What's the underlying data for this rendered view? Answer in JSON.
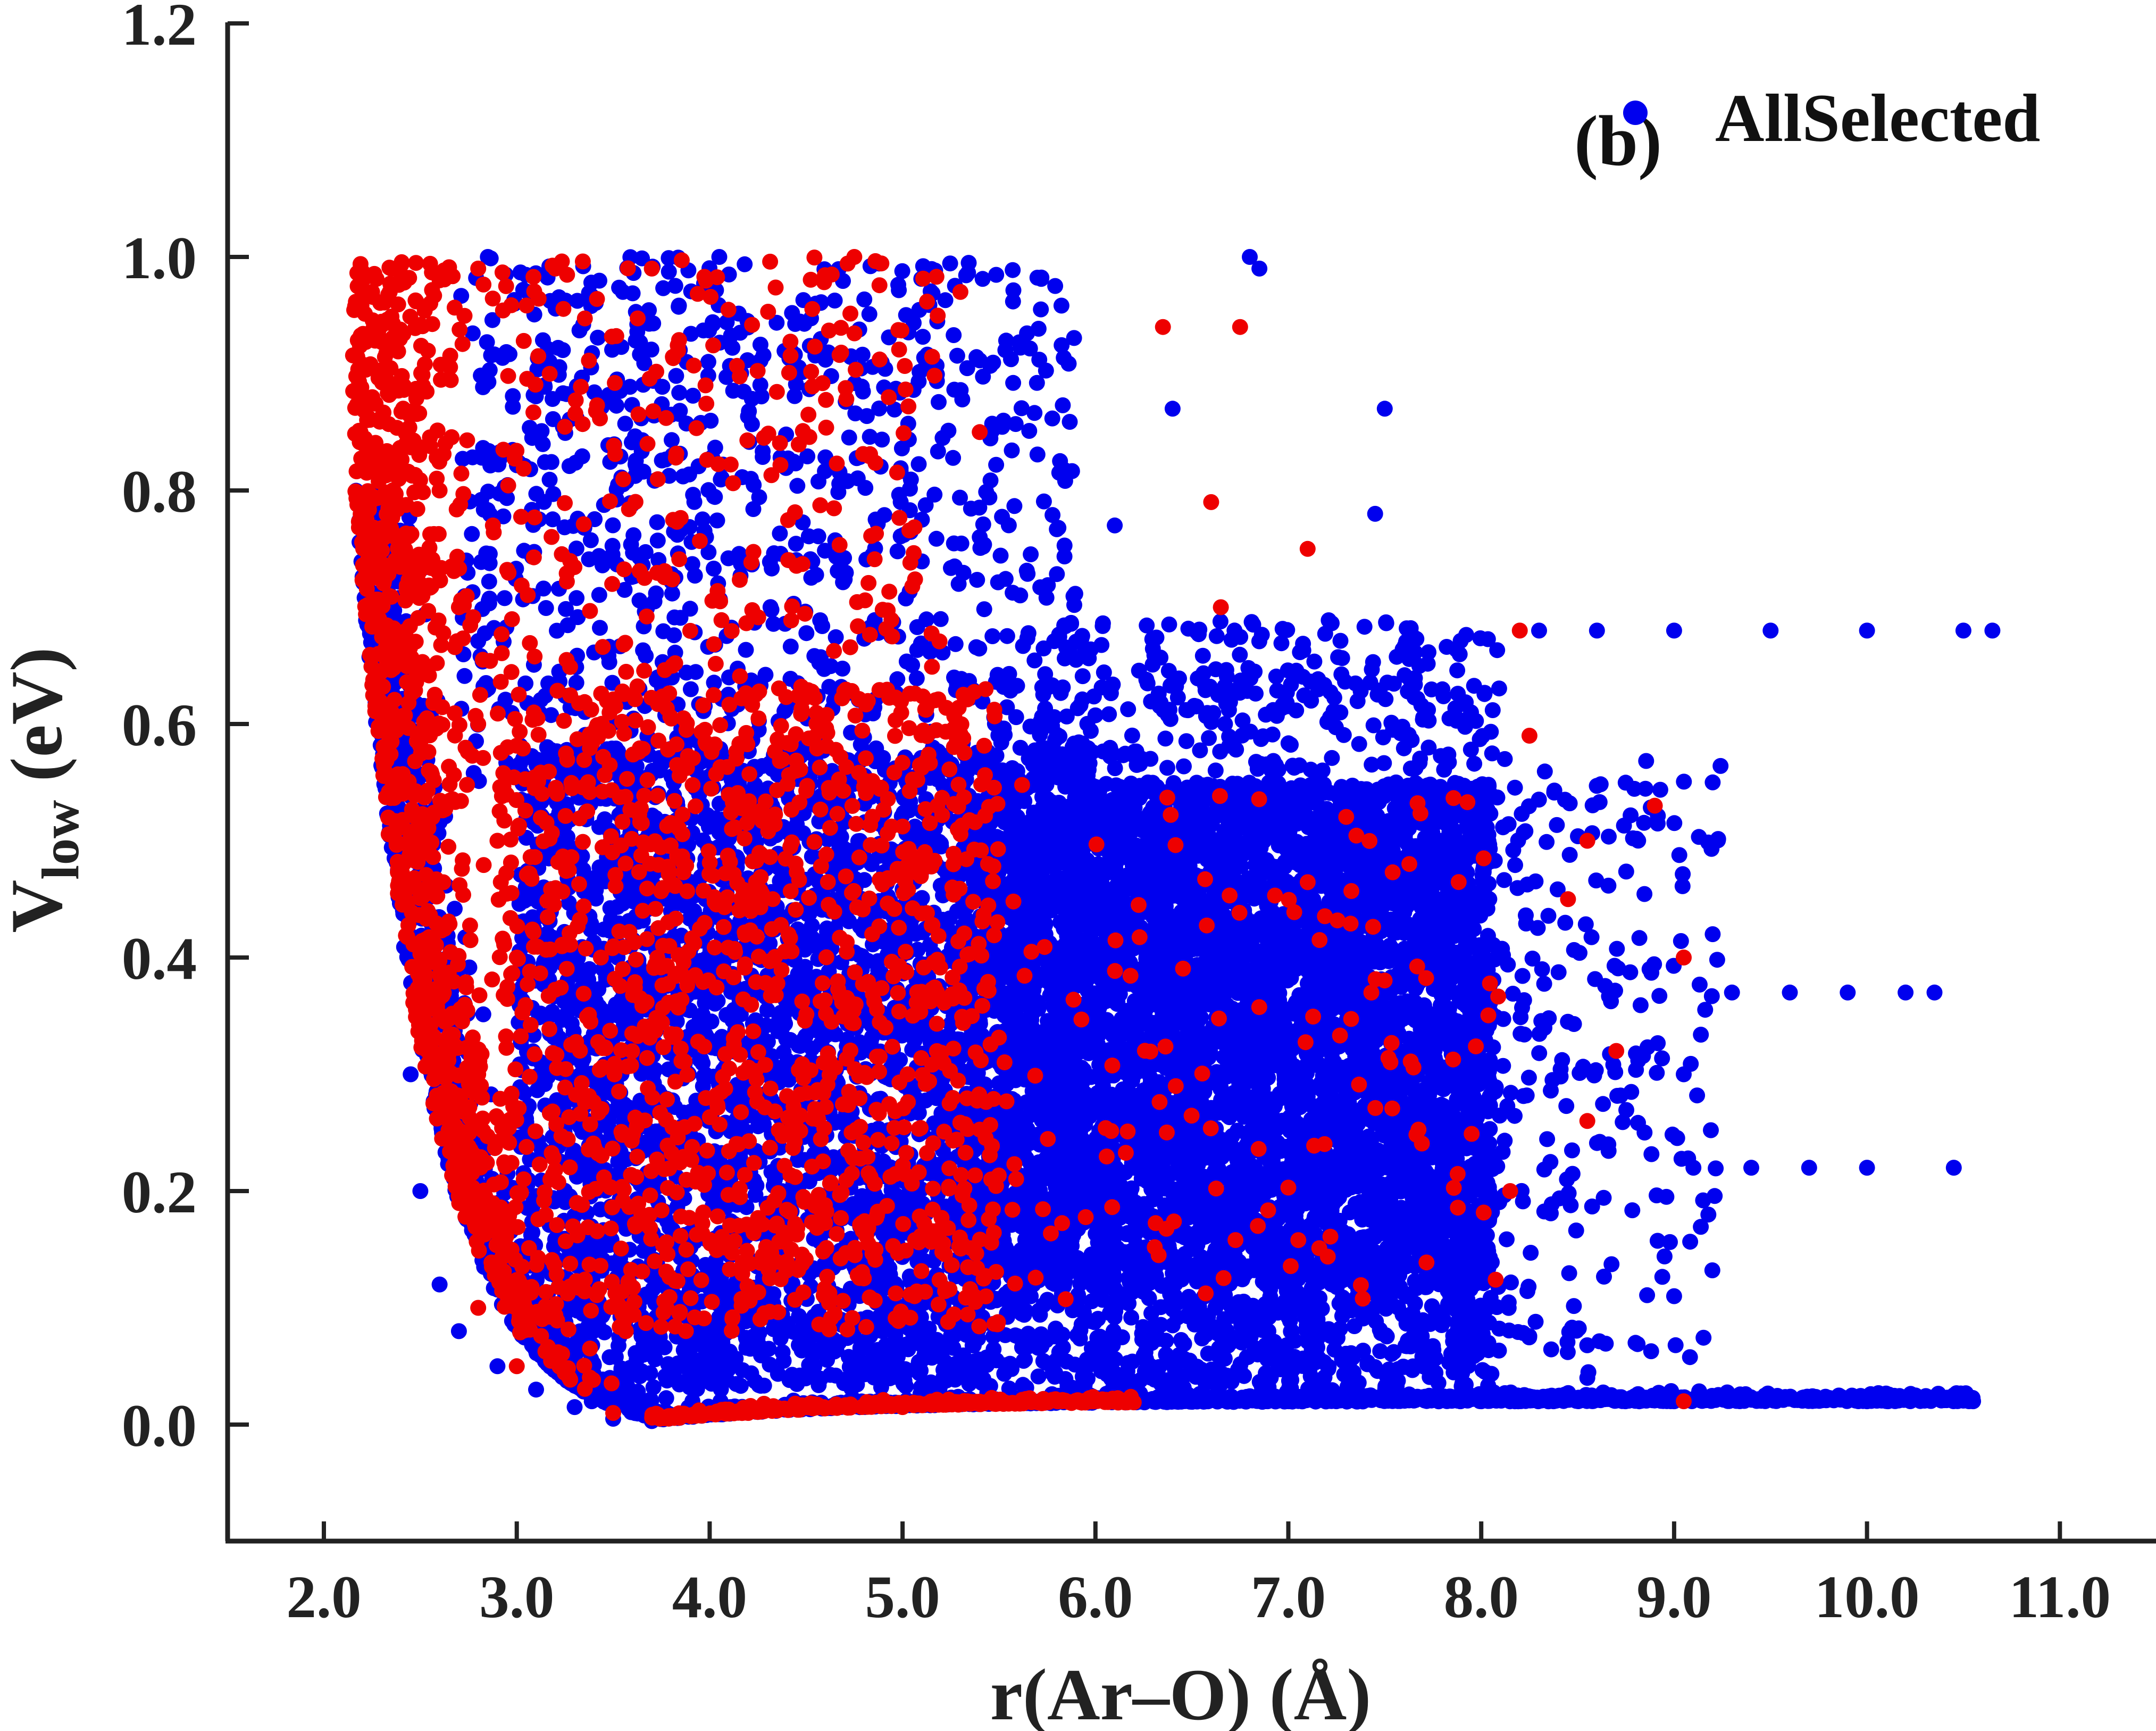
{
  "chart_data": {
    "type": "scatter",
    "panel_label": "(b)",
    "xlabel": "r(Ar–O) (Å)",
    "ylabel_main": "V",
    "ylabel_sub": "low",
    "ylabel_unit": " (eV)",
    "xlim": [
      1.5,
      11.5
    ],
    "ylim": [
      -0.1,
      1.2
    ],
    "xticks": [
      2.0,
      3.0,
      4.0,
      5.0,
      6.0,
      7.0,
      8.0,
      9.0,
      10.0,
      11.0
    ],
    "xtick_labels": [
      "2.0",
      "3.0",
      "4.0",
      "5.0",
      "6.0",
      "7.0",
      "8.0",
      "9.0",
      "10.0",
      "11.0"
    ],
    "yticks": [
      0.0,
      0.2,
      0.4,
      0.6,
      0.8,
      1.0,
      1.2
    ],
    "ytick_labels": [
      "0.0",
      "0.2",
      "0.4",
      "0.6",
      "0.8",
      "1.0",
      "1.2"
    ],
    "grid": false,
    "legend_position": "top-right",
    "series": [
      {
        "name": "AllSelected",
        "color": "#0000ee",
        "description_points": [
          [
            2.3,
            0.77
          ],
          [
            2.35,
            0.6
          ],
          [
            2.4,
            0.45
          ],
          [
            2.45,
            0.3
          ],
          [
            2.5,
            0.2
          ],
          [
            2.6,
            0.12
          ],
          [
            2.7,
            0.08
          ],
          [
            2.9,
            0.05
          ],
          [
            3.1,
            0.03
          ],
          [
            3.3,
            0.015
          ],
          [
            3.5,
            0.005
          ],
          [
            3.7,
            0.003
          ],
          [
            4.0,
            0.01
          ],
          [
            4.5,
            0.015
          ],
          [
            5.0,
            0.018
          ],
          [
            6.0,
            0.02
          ],
          [
            7.0,
            0.02
          ],
          [
            8.0,
            0.02
          ],
          [
            9.0,
            0.02
          ],
          [
            10.0,
            0.02
          ],
          [
            10.55,
            0.02
          ],
          [
            2.85,
            1.0
          ],
          [
            3.55,
            0.97
          ],
          [
            4.05,
            1.0
          ],
          [
            4.55,
            0.96
          ],
          [
            6.8,
            1.0
          ],
          [
            6.85,
            0.99
          ],
          [
            6.4,
            0.87
          ],
          [
            7.5,
            0.87
          ],
          [
            6.1,
            0.77
          ],
          [
            7.45,
            0.78
          ],
          [
            5.4,
            0.76
          ],
          [
            8.3,
            0.68
          ],
          [
            8.6,
            0.68
          ],
          [
            9.0,
            0.68
          ],
          [
            9.5,
            0.68
          ],
          [
            10.0,
            0.68
          ],
          [
            10.5,
            0.68
          ],
          [
            10.65,
            0.68
          ],
          [
            9.3,
            0.37
          ],
          [
            9.6,
            0.37
          ],
          [
            9.9,
            0.37
          ],
          [
            10.2,
            0.37
          ],
          [
            10.35,
            0.37
          ],
          [
            9.1,
            0.22
          ],
          [
            9.4,
            0.22
          ],
          [
            9.7,
            0.22
          ],
          [
            10.0,
            0.22
          ],
          [
            10.45,
            0.22
          ],
          [
            9.2,
            0.55
          ],
          [
            9.2,
            0.42
          ],
          [
            9.05,
            0.3
          ],
          [
            9.0,
            0.11
          ],
          [
            8.8,
            0.07
          ],
          [
            8.55,
            0.04
          ]
        ]
      },
      {
        "name": "",
        "color": "#ee0000",
        "description_points": [
          [
            2.25,
            0.97
          ],
          [
            2.3,
            0.83
          ],
          [
            2.35,
            0.99
          ],
          [
            2.6,
            0.98
          ],
          [
            2.8,
            0.99
          ],
          [
            3.2,
            0.99
          ],
          [
            3.7,
            0.99
          ],
          [
            4.75,
            1.0
          ],
          [
            5.3,
            0.97
          ],
          [
            6.35,
            0.94
          ],
          [
            6.75,
            0.94
          ],
          [
            5.4,
            0.85
          ],
          [
            2.6,
            0.8
          ],
          [
            2.7,
            0.7
          ],
          [
            2.8,
            0.6
          ],
          [
            2.9,
            0.5
          ],
          [
            3.0,
            0.4
          ],
          [
            2.8,
            0.3
          ],
          [
            2.75,
            0.2
          ],
          [
            2.8,
            0.1
          ],
          [
            3.0,
            0.05
          ],
          [
            3.5,
            0.01
          ],
          [
            4.2,
            0.01
          ],
          [
            5.0,
            0.015
          ],
          [
            6.6,
            0.79
          ],
          [
            7.1,
            0.75
          ],
          [
            6.65,
            0.7
          ],
          [
            8.2,
            0.68
          ],
          [
            8.25,
            0.59
          ],
          [
            8.55,
            0.5
          ],
          [
            8.9,
            0.53
          ],
          [
            9.05,
            0.4
          ],
          [
            8.45,
            0.45
          ],
          [
            8.7,
            0.32
          ],
          [
            8.55,
            0.26
          ],
          [
            8.15,
            0.2
          ],
          [
            9.05,
            0.02
          ]
        ]
      }
    ]
  }
}
